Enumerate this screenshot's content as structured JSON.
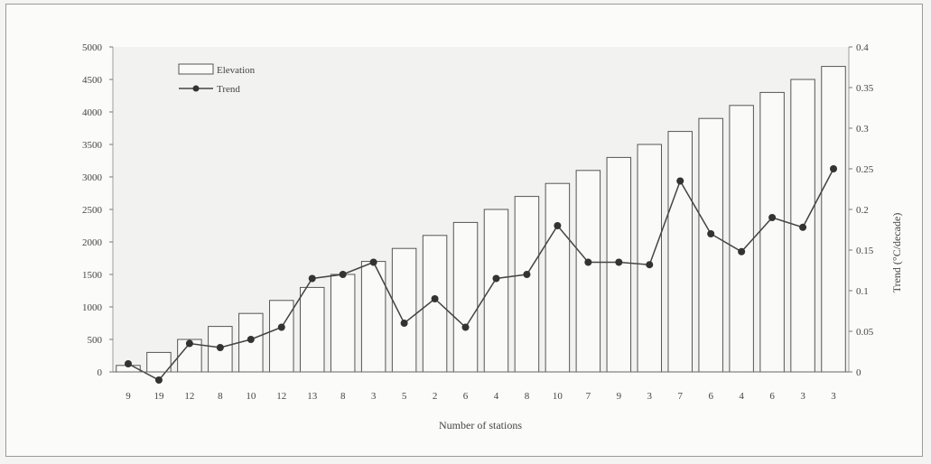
{
  "chart_data": {
    "type": "bar",
    "title": "",
    "xlabel": "Number of stations",
    "ylabel": "",
    "y2label": "Trend (°C/decade)",
    "legend": {
      "placement": "top-left",
      "entries": [
        "Elevation",
        "Trend"
      ]
    },
    "ylim": [
      0,
      5000
    ],
    "yticks": [
      "0",
      "500",
      "1000",
      "1500",
      "2000",
      "2500",
      "3000",
      "3500",
      "4000",
      "4500",
      "5000"
    ],
    "y2lim": [
      0,
      0.4
    ],
    "y2ticks": [
      "0",
      "0.05",
      "0.1",
      "0.15",
      "0.2",
      "0.25",
      "0.3",
      "0.35",
      "0.4"
    ],
    "categories": [
      "9",
      "19",
      "12",
      "8",
      "10",
      "12",
      "13",
      "8",
      "3",
      "5",
      "2",
      "6",
      "4",
      "8",
      "10",
      "7",
      "9",
      "3",
      "7",
      "6",
      "4",
      "6",
      "3",
      "3"
    ],
    "series": [
      {
        "name": "Elevation",
        "type": "bar",
        "axis": "left",
        "values": [
          100,
          300,
          500,
          700,
          900,
          1100,
          1300,
          1500,
          1700,
          1900,
          2100,
          2300,
          2500,
          2700,
          2900,
          3100,
          3300,
          3500,
          3700,
          3900,
          4100,
          4300,
          4500,
          4700
        ]
      },
      {
        "name": "Trend",
        "type": "line",
        "axis": "right",
        "values": [
          0.01,
          -0.01,
          0.035,
          0.03,
          0.04,
          0.055,
          0.115,
          0.12,
          0.135,
          0.06,
          0.09,
          0.055,
          0.115,
          0.12,
          0.18,
          0.135,
          0.135,
          0.132,
          0.235,
          0.17,
          0.148,
          0.19,
          0.178,
          0.25
        ]
      }
    ],
    "grid": false
  },
  "colors": {
    "bar_fill": "#fafaf8",
    "bar_stroke": "#555555",
    "line": "#444444",
    "marker": "#333333"
  }
}
